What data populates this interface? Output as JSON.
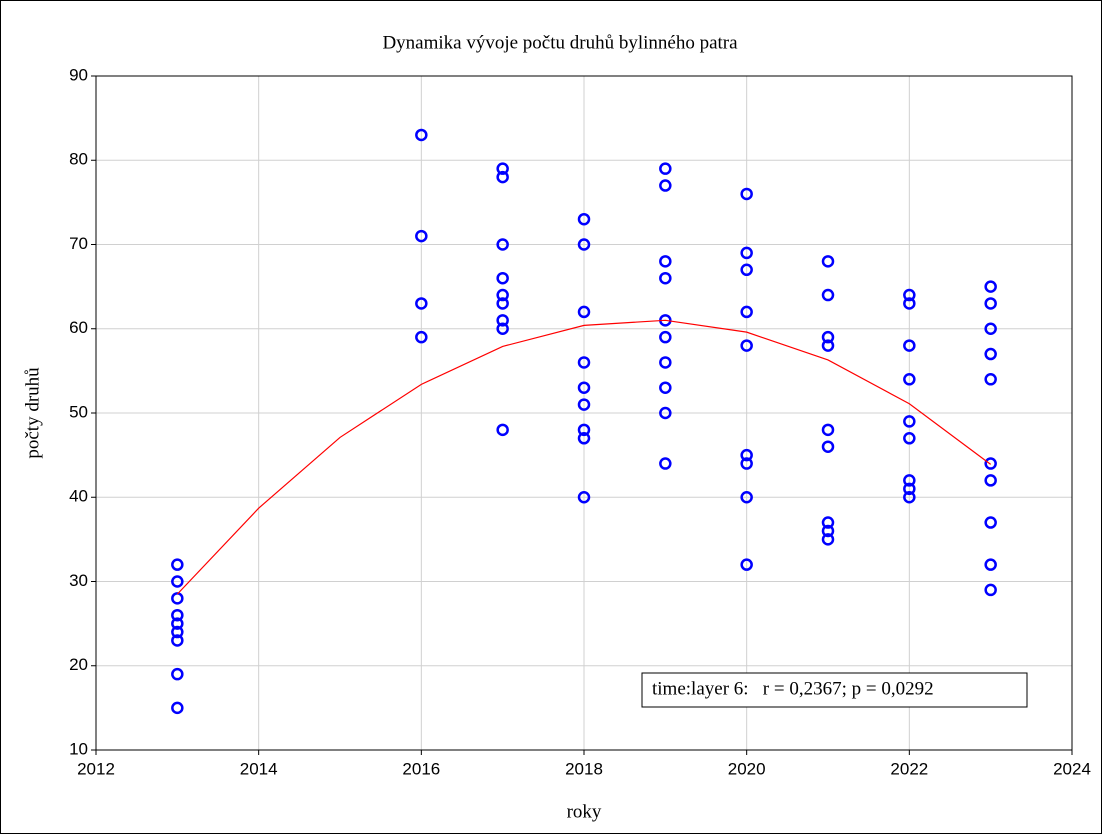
{
  "chart_data": {
    "type": "scatter",
    "title": "Dynamika vývoje počtu druhů bylinného patra",
    "x_label": "roky",
    "y_label": "počty druhů",
    "annotation": "time:layer 6:   r = 0,2367; p = 0,0292",
    "xlim": [
      2012,
      2024
    ],
    "xticks": [
      2012,
      2014,
      2016,
      2018,
      2020,
      2022,
      2024
    ],
    "ylim": [
      10,
      90
    ],
    "yticks": [
      10,
      20,
      30,
      40,
      50,
      60,
      70,
      80,
      90
    ],
    "grid": true,
    "series": [
      {
        "type": "scatter",
        "color": "#0000ff",
        "x": [
          2013,
          2013,
          2013,
          2013,
          2013,
          2013,
          2013,
          2013,
          2013,
          2016,
          2016,
          2016,
          2016,
          2017,
          2017,
          2017,
          2017,
          2017,
          2017,
          2017,
          2017,
          2017,
          2018,
          2018,
          2018,
          2018,
          2018,
          2018,
          2018,
          2018,
          2018,
          2019,
          2019,
          2019,
          2019,
          2019,
          2019,
          2019,
          2019,
          2019,
          2019,
          2020,
          2020,
          2020,
          2020,
          2020,
          2020,
          2020,
          2020,
          2020,
          2021,
          2021,
          2021,
          2021,
          2021,
          2021,
          2021,
          2021,
          2021,
          2022,
          2022,
          2022,
          2022,
          2022,
          2022,
          2022,
          2022,
          2022,
          2023,
          2023,
          2023,
          2023,
          2023,
          2023,
          2023,
          2023,
          2023,
          2023
        ],
        "values": [
          32,
          30,
          28,
          26,
          25,
          24,
          23,
          19,
          15,
          83,
          71,
          63,
          59,
          79,
          78,
          70,
          66,
          64,
          63,
          61,
          60,
          48,
          73,
          70,
          62,
          56,
          53,
          51,
          48,
          47,
          40,
          79,
          77,
          68,
          66,
          61,
          59,
          56,
          53,
          50,
          44,
          76,
          69,
          67,
          62,
          58,
          45,
          44,
          40,
          32,
          68,
          64,
          59,
          58,
          48,
          46,
          37,
          36,
          35,
          64,
          63,
          58,
          54,
          49,
          47,
          42,
          41,
          40,
          65,
          63,
          60,
          57,
          54,
          44,
          42,
          37,
          32,
          29
        ]
      },
      {
        "type": "line",
        "color": "#ff0000",
        "x": [
          2013,
          2014,
          2015,
          2016,
          2017,
          2018,
          2019,
          2020,
          2021,
          2022,
          2023
        ],
        "values": [
          28.5,
          38.7,
          47.1,
          53.4,
          57.9,
          60.4,
          61.0,
          59.6,
          56.3,
          51.1,
          43.9
        ]
      }
    ]
  }
}
